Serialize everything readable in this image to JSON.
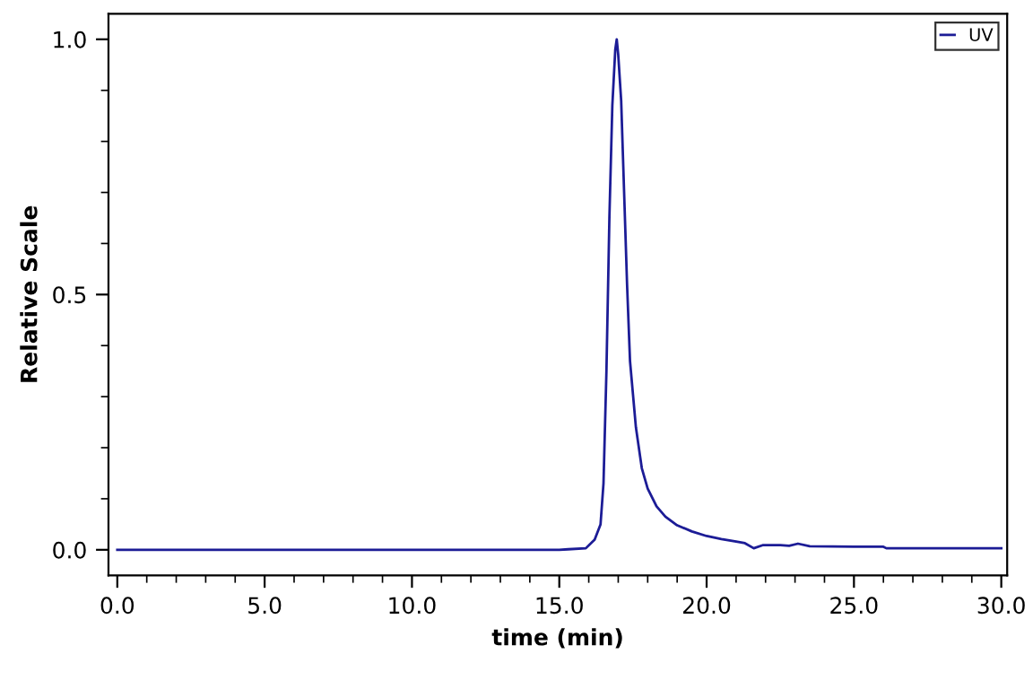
{
  "chart_data": {
    "type": "line",
    "xlabel": "time (min)",
    "ylabel": "Relative Scale",
    "xlim": [
      -0.3,
      30.2
    ],
    "ylim": [
      -0.05,
      1.05
    ],
    "xticks": [
      {
        "value": 0,
        "label": "0.0"
      },
      {
        "value": 5,
        "label": "5.0"
      },
      {
        "value": 10,
        "label": "10.0"
      },
      {
        "value": 15,
        "label": "15.0"
      },
      {
        "value": 20,
        "label": "20.0"
      },
      {
        "value": 25,
        "label": "25.0"
      },
      {
        "value": 30,
        "label": "30.0"
      }
    ],
    "yticks": [
      {
        "value": 0,
        "label": "0.0"
      },
      {
        "value": 0.5,
        "label": "0.5"
      },
      {
        "value": 1,
        "label": "1.0"
      }
    ],
    "grid": false,
    "legend": "top right",
    "marker": "none",
    "line_style": "solid",
    "series": [
      {
        "name": "UV",
        "color": "#1c1c96",
        "x": [
          0,
          15.0,
          15.3,
          15.9,
          16.2,
          16.4,
          16.5,
          16.6,
          16.7,
          16.8,
          16.9,
          16.95,
          17.0,
          17.1,
          17.2,
          17.3,
          17.4,
          17.6,
          17.8,
          18.0,
          18.3,
          18.6,
          19.0,
          19.5,
          20.0,
          20.5,
          21.0,
          21.3,
          21.6,
          21.9,
          22.5,
          22.8,
          23.1,
          23.5,
          25.0,
          26.0,
          26.1,
          30.0
        ],
        "values": [
          0,
          0,
          0.001,
          0.003,
          0.02,
          0.05,
          0.13,
          0.35,
          0.65,
          0.87,
          0.98,
          1.0,
          0.97,
          0.88,
          0.7,
          0.52,
          0.37,
          0.24,
          0.16,
          0.12,
          0.085,
          0.065,
          0.048,
          0.036,
          0.027,
          0.021,
          0.016,
          0.013,
          0.003,
          0.009,
          0.009,
          0.008,
          0.012,
          0.007,
          0.006,
          0.006,
          0.003,
          0.003
        ]
      }
    ]
  }
}
